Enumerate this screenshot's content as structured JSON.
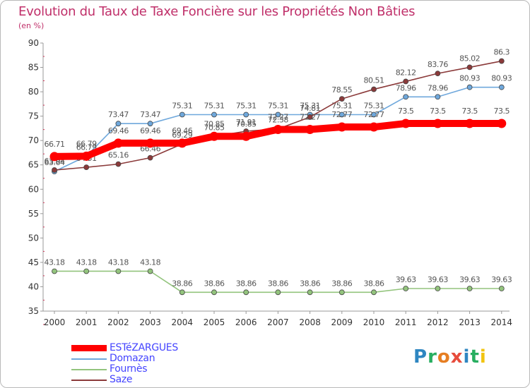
{
  "title": "Evolution du Taux de Taxe Foncière sur les Propriétés Non Bâties",
  "unit_label": "(en %)",
  "logo_text": "Proxiti",
  "chart_data": {
    "type": "line",
    "x": [
      "2000",
      "2001",
      "2002",
      "2003",
      "2004",
      "2005",
      "2006",
      "2007",
      "2008",
      "2009",
      "2010",
      "2011",
      "2012",
      "2013",
      "2014"
    ],
    "ylim": [
      35,
      90
    ],
    "yticks": [
      35,
      40,
      45,
      50,
      55,
      60,
      65,
      70,
      75,
      80,
      85,
      90
    ],
    "grid": false,
    "legend_position": "bottom-left",
    "series": [
      {
        "name": "ESTéZARGUES",
        "color": "#ff0000",
        "values": [
          66.71,
          66.79,
          69.46,
          69.46,
          69.46,
          70.85,
          70.85,
          72.27,
          72.27,
          72.77,
          72.77,
          73.5,
          73.5,
          73.5,
          73.5
        ],
        "labels": [
          "66.71",
          "66.79",
          "69.46",
          "69.46",
          "69.46",
          "70.85",
          "70.85",
          "72.27",
          "72.27",
          "72.77",
          "72.77",
          "73.5",
          "73.5",
          "73.5",
          "73.5"
        ]
      },
      {
        "name": "Domazan",
        "color": "#6fa8dc",
        "values": [
          63.64,
          66.79,
          73.47,
          73.47,
          75.31,
          75.31,
          75.31,
          75.31,
          75.31,
          75.31,
          75.31,
          78.96,
          78.96,
          80.93,
          80.93
        ],
        "labels": [
          "63.64",
          "66.79",
          "73.47",
          "73.47",
          "75.31",
          "75.31",
          "75.31",
          "75.31",
          "75.31",
          "75.31",
          "75.31",
          "78.96",
          "78.96",
          "80.93",
          "80.93"
        ]
      },
      {
        "name": "Fournès",
        "color": "#93c47d",
        "values": [
          43.18,
          43.18,
          43.18,
          43.18,
          38.86,
          38.86,
          38.86,
          38.86,
          38.86,
          38.86,
          38.86,
          39.63,
          39.63,
          39.63,
          39.63
        ],
        "labels": [
          "43.18",
          "43.18",
          "43.18",
          "43.18",
          "38.86",
          "38.86",
          "38.86",
          "38.86",
          "38.86",
          "38.86",
          "38.86",
          "39.63",
          "39.63",
          "39.63",
          "39.63"
        ]
      },
      {
        "name": "Saze",
        "color": "#8b3a3a",
        "values": [
          63.94,
          64.51,
          65.16,
          66.46,
          69.29,
          70.85,
          71.91,
          72.38,
          74.81,
          78.55,
          80.51,
          82.12,
          83.76,
          85.02,
          86.3
        ],
        "labels": [
          "63.94",
          "64.51",
          "65.16",
          "66.46",
          "69.29",
          "70.85",
          "71.91",
          "72.38",
          "74.81",
          "78.55",
          "80.51",
          "82.12",
          "83.76",
          "85.02",
          "86.3"
        ]
      }
    ]
  }
}
